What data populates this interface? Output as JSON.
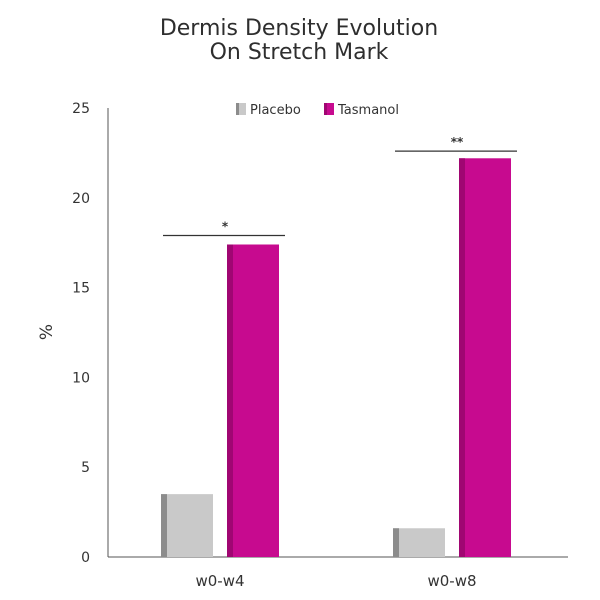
{
  "chart_data": {
    "type": "bar",
    "title": "Dermis Density Evolution",
    "subtitle": "On Stretch Mark",
    "xlabel": "",
    "ylabel": "%",
    "categories": [
      "w0-w4",
      "w0-w8"
    ],
    "series": [
      {
        "name": "Placebo",
        "values": [
          3.5,
          1.6
        ],
        "color": "#c9c9c9",
        "shade": "#8c8c8c"
      },
      {
        "name": "Tasmanol",
        "values": [
          17.4,
          22.2
        ],
        "color": "#c70a8f",
        "shade": "#a00672"
      }
    ],
    "ylim": [
      0,
      25
    ],
    "yticks": [
      0,
      5,
      10,
      15,
      20,
      25
    ],
    "grid": false,
    "legend": "top",
    "annotations": [
      {
        "category": "w0-w4",
        "text": "*",
        "level": 17.9
      },
      {
        "category": "w0-w8",
        "text": "**",
        "level": 22.6
      }
    ]
  }
}
